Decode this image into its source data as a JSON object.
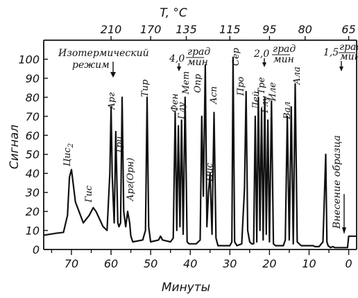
{
  "chart_data": {
    "type": "line",
    "xlabel": "Минуты",
    "ylabel": "Сигнал",
    "top_axis_label": "T, °C",
    "x_reversed": true,
    "xlim": [
      77,
      -2
    ],
    "ylim": [
      0,
      110
    ],
    "x_ticks": [
      70,
      60,
      50,
      40,
      30,
      20,
      10,
      0
    ],
    "y_ticks": [
      0,
      10,
      20,
      30,
      40,
      50,
      60,
      70,
      80,
      90,
      100
    ],
    "top_ticks": [
      {
        "label": "210",
        "x": 60
      },
      {
        "label": "170",
        "x": 50
      },
      {
        "label": "135",
        "x": 41
      },
      {
        "label": "115",
        "x": 30
      },
      {
        "label": "95",
        "x": 20
      },
      {
        "label": "80",
        "x": 11
      },
      {
        "label": "65",
        "x": 0
      }
    ],
    "series": [
      {
        "x": [
          77,
          74,
          72,
          71,
          70.5,
          70,
          69,
          67,
          65.5,
          64.5,
          63.8,
          62,
          61,
          60.3,
          60,
          59.7,
          59.2,
          58.8,
          58.3,
          58,
          57.6,
          57.2,
          56.8,
          56.3,
          55.8,
          55.3,
          55,
          54.5,
          52,
          51.3,
          50.9,
          50.5,
          50,
          48,
          47.5,
          47,
          45,
          44.3,
          43.8,
          43.4,
          43.0,
          42.6,
          42.2,
          41.8,
          41.3,
          40.8,
          40.3,
          39.8,
          38.5,
          37.5,
          37.1,
          36.7,
          36.2,
          35.8,
          35.4,
          35.0,
          34.5,
          34.0,
          33.5,
          33.0,
          32.3,
          31,
          30,
          29.5,
          29.2,
          28.8,
          28.2,
          27,
          26.3,
          25.9,
          25.5,
          25.0,
          24.5,
          24.0,
          23.6,
          23.2,
          22.8,
          22.4,
          22.0,
          21.6,
          21.2,
          20.8,
          20.4,
          20.0,
          19.5,
          19.0,
          18.5,
          17.5,
          16.5,
          16.0,
          15.5,
          15.0,
          14.5,
          14.0,
          13.5,
          13.0,
          12.5,
          12.0,
          11.0,
          10.0,
          9.0,
          8.5,
          8.0,
          7.5,
          6.5,
          5.8,
          5.5,
          5.2,
          4.9,
          4.6,
          4.0,
          3.5,
          3.0,
          2.0,
          1.0,
          0.5,
          0.3,
          0,
          -1,
          -2
        ],
        "y": [
          7.5,
          8.5,
          9,
          18,
          38,
          42,
          25,
          14,
          18,
          22,
          20,
          12,
          10,
          40,
          75,
          38,
          14,
          62,
          14,
          12,
          14,
          80,
          20,
          12,
          20,
          14,
          7,
          4,
          5,
          10,
          80,
          12,
          4,
          5,
          7,
          5,
          4,
          6,
          72,
          10,
          65,
          12,
          68,
          8,
          80,
          4,
          3,
          3,
          3,
          5,
          70,
          28,
          97,
          12,
          30,
          40,
          8,
          72,
          6,
          2,
          2,
          2,
          2,
          4,
          101,
          4,
          2,
          3,
          32,
          83,
          10,
          4,
          3,
          3,
          70,
          4,
          80,
          10,
          74,
          5,
          80,
          8,
          68,
          4,
          78,
          3,
          2,
          2,
          2,
          5,
          70,
          5,
          75,
          3,
          87,
          4,
          3,
          2,
          2,
          2,
          2,
          1.5,
          1.5,
          1.5,
          4,
          50,
          4,
          2,
          1.5,
          1,
          1.5,
          1,
          1,
          1,
          1,
          1,
          1,
          7,
          7,
          7
        ]
      }
    ],
    "peak_labels": [
      "Цис",
      "Гис",
      "Арг",
      "Три",
      "Арг(Орн)",
      "Тир",
      "Фен",
      "Глу",
      "Мет",
      "Опр",
      "Цис",
      "Асп",
      "Сер",
      "Про",
      "Лей",
      "Глу",
      "Тре",
      "Иле",
      "Вал",
      "Ала"
    ],
    "peak_sub_cys": "2",
    "annotations": {
      "isothermal_line1": "Изотермический",
      "isothermal_line2": "режим",
      "rate1": "4,0",
      "rate2": "2,0",
      "rate3": "1,5",
      "rate_unit_num": "град",
      "rate_unit_den": "мин",
      "injection": "Внесение образца"
    }
  }
}
